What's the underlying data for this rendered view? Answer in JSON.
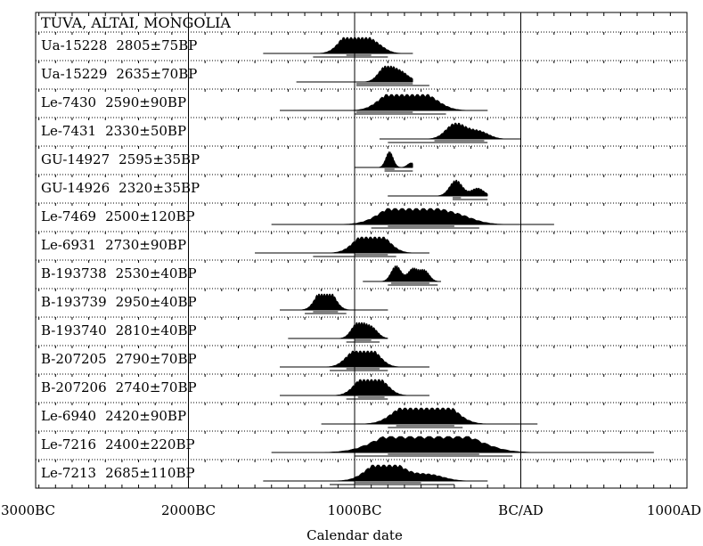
{
  "chart_data": {
    "type": "multiple-plot",
    "title": "TUVA, ALTAI, MONGOLIA",
    "xlabel": "Calendar date",
    "xlim": [
      -3000,
      1000
    ],
    "x_ticks": [
      {
        "value": -3000,
        "label": "3000BC"
      },
      {
        "value": -2000,
        "label": "2000BC"
      },
      {
        "value": -1000,
        "label": "1000BC"
      },
      {
        "value": 0,
        "label": "BC/AD"
      },
      {
        "value": 1000,
        "label": "1000AD"
      }
    ],
    "vertical_gridlines": [
      -2000,
      -1000,
      0
    ],
    "ticks_on_frame": true,
    "samples": [
      {
        "lab_code": "Ua-15228",
        "date": "2805±75BP",
        "range": [
          -1550,
          -650
        ],
        "sigma1": [
          -1050,
          -900
        ],
        "sigma2": [
          -1250,
          -800
        ],
        "peaks": [
          [
            -1050,
            0.8
          ],
          [
            -980,
            1.0
          ],
          [
            -880,
            0.6
          ]
        ]
      },
      {
        "lab_code": "Ua-15229",
        "date": "2635±70BP",
        "range": [
          -1350,
          -650
        ],
        "sigma1": [
          -990,
          -650
        ],
        "sigma2": [
          -990,
          -550
        ],
        "peaks": [
          [
            -810,
            1.0
          ],
          [
            -720,
            0.6
          ],
          [
            -560,
            0.4
          ]
        ]
      },
      {
        "lab_code": "Le-7430",
        "date": "2590±90BP",
        "range": [
          -1450,
          -200
        ],
        "sigma1": [
          -990,
          -650
        ],
        "sigma2": [
          -1000,
          -450
        ],
        "peaks": [
          [
            -780,
            1.0
          ],
          [
            -650,
            0.8
          ],
          [
            -550,
            0.6
          ]
        ]
      },
      {
        "lab_code": "Le-7431",
        "date": "2330±50BP",
        "range": [
          -850,
          0
        ],
        "sigma1": [
          -520,
          -220
        ],
        "sigma2": [
          -800,
          -200
        ],
        "peaks": [
          [
            -400,
            0.9
          ],
          [
            -320,
            0.3
          ],
          [
            -240,
            0.4
          ]
        ]
      },
      {
        "lab_code": "GU-14927",
        "date": "2595±35BP",
        "range": [
          -1000,
          -650
        ],
        "sigma1": [
          -820,
          -760
        ],
        "sigma2": [
          -820,
          -650
        ],
        "peaks": [
          [
            -790,
            1.0
          ],
          [
            -660,
            0.3
          ]
        ]
      },
      {
        "lab_code": "GU-14926",
        "date": "2320±35BP",
        "range": [
          -800,
          -200
        ],
        "sigma1": [
          -410,
          -360
        ],
        "sigma2": [
          -410,
          -200
        ],
        "peaks": [
          [
            -390,
            1.0
          ],
          [
            -260,
            0.5
          ]
        ]
      },
      {
        "lab_code": "Le-7469",
        "date": "2500±120BP",
        "range": [
          -1500,
          200
        ],
        "sigma1": [
          -800,
          -400
        ],
        "sigma2": [
          -900,
          -250
        ],
        "peaks": [
          [
            -750,
            1.0
          ],
          [
            -600,
            0.9
          ],
          [
            -400,
            0.6
          ]
        ]
      },
      {
        "lab_code": "Le-6931",
        "date": "2730±90BP",
        "range": [
          -1600,
          -550
        ],
        "sigma1": [
          -1000,
          -800
        ],
        "sigma2": [
          -1250,
          -750
        ],
        "peaks": [
          [
            -950,
            0.9
          ],
          [
            -850,
            1.0
          ]
        ]
      },
      {
        "lab_code": "B-193738",
        "date": "2530±40BP",
        "range": [
          -950,
          -480
        ],
        "sigma1": [
          -780,
          -550
        ],
        "sigma2": [
          -800,
          -500
        ],
        "peaks": [
          [
            -750,
            1.0
          ],
          [
            -650,
            0.8
          ],
          [
            -580,
            0.7
          ]
        ]
      },
      {
        "lab_code": "B-193739",
        "date": "2950±40BP",
        "range": [
          -1450,
          -800
        ],
        "sigma1": [
          -1250,
          -1100
        ],
        "sigma2": [
          -1300,
          -1050
        ],
        "peaks": [
          [
            -1200,
            1.0
          ],
          [
            -1150,
            0.9
          ]
        ]
      },
      {
        "lab_code": "B-193740",
        "date": "2810±40BP",
        "range": [
          -1400,
          -800
        ],
        "sigma1": [
          -1000,
          -900
        ],
        "sigma2": [
          -1050,
          -850
        ],
        "peaks": [
          [
            -980,
            1.0
          ],
          [
            -900,
            0.7
          ]
        ]
      },
      {
        "lab_code": "B-207205",
        "date": "2790±70BP",
        "range": [
          -1450,
          -550
        ],
        "sigma1": [
          -1050,
          -850
        ],
        "sigma2": [
          -1150,
          -800
        ],
        "peaks": [
          [
            -1000,
            0.9
          ],
          [
            -900,
            1.0
          ]
        ]
      },
      {
        "lab_code": "B-207206",
        "date": "2740±70BP",
        "range": [
          -1450,
          -550
        ],
        "sigma1": [
          -980,
          -820
        ],
        "sigma2": [
          -1050,
          -800
        ],
        "peaks": [
          [
            -950,
            1.0
          ],
          [
            -850,
            0.9
          ]
        ]
      },
      {
        "lab_code": "Le-6940",
        "date": "2420±90BP",
        "range": [
          -1200,
          100
        ],
        "sigma1": [
          -750,
          -400
        ],
        "sigma2": [
          -800,
          -350
        ],
        "peaks": [
          [
            -700,
            1.0
          ],
          [
            -550,
            0.9
          ],
          [
            -450,
            0.9
          ]
        ]
      },
      {
        "lab_code": "Le-7216",
        "date": "2400±220BP",
        "range": [
          -1500,
          800
        ],
        "sigma1": [
          -800,
          -250
        ],
        "sigma2": [
          -1000,
          -50
        ],
        "peaks": [
          [
            -750,
            1.0
          ],
          [
            -550,
            0.9
          ],
          [
            -350,
            0.8
          ]
        ]
      },
      {
        "lab_code": "Le-7213",
        "date": "2685±110BP",
        "range": [
          -1550,
          -200
        ],
        "sigma1": [
          -1000,
          -600
        ],
        "sigma2": [
          -1150,
          -400
        ],
        "peaks": [
          [
            -850,
            1.0
          ],
          [
            -750,
            0.6
          ],
          [
            -550,
            0.4
          ]
        ]
      }
    ]
  }
}
